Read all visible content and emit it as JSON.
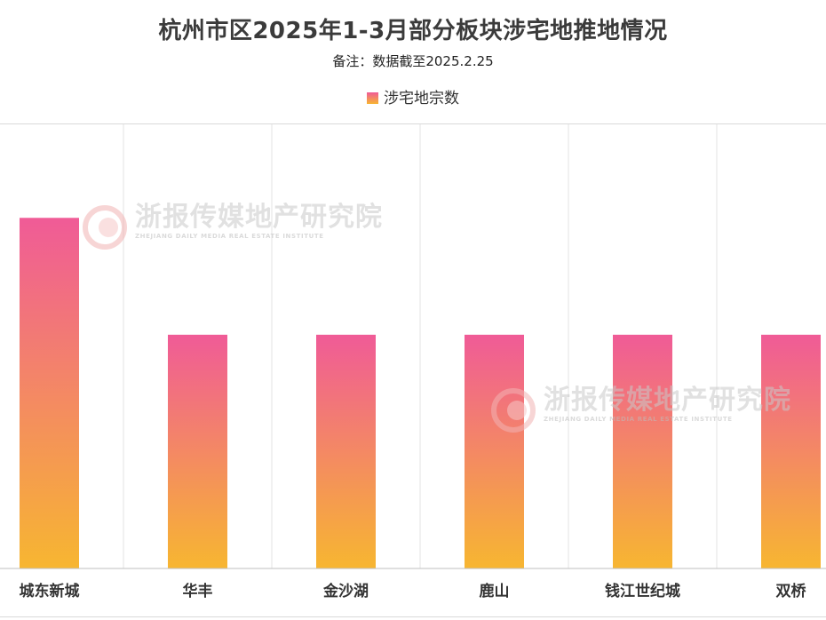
{
  "chart_data": {
    "type": "bar",
    "title": "杭州市区2025年1-3月部分板块涉宅地推地情况",
    "subtitle": "备注：数据截至2025.2.25",
    "categories": [
      "城东新城",
      "华丰",
      "金沙湖",
      "鹿山",
      "钱江世纪城",
      "双桥"
    ],
    "series": [
      {
        "name": "涉宅地宗数",
        "values": [
          3,
          2,
          2,
          2,
          2,
          2
        ]
      }
    ],
    "ylim": [
      0,
      3.8
    ],
    "grid": "vertical-category-separators",
    "legend_position": "top-center",
    "colors": {
      "bar_top": "#f05b97",
      "bar_bottom": "#f7b631"
    }
  },
  "watermark": {
    "text": "浙报传媒地产研究院",
    "subtext": "ZHEJIANG DAILY MEDIA REAL ESTATE INSTITUTE"
  }
}
